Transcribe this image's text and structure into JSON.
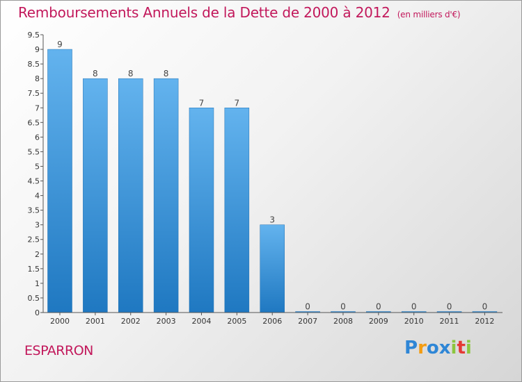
{
  "title": "Remboursements Annuels de la Dette de 2000 à 2012",
  "unit": "(en milliers d'€)",
  "place": "ESPARRON",
  "brand": {
    "letters": [
      "P",
      "r",
      "o",
      "x",
      "i",
      "t",
      "i"
    ],
    "colors": [
      "#2e86d6",
      "#f39c12",
      "#2e86d6",
      "#2e86d6",
      "#8cc63f",
      "#e53935",
      "#8cc63f"
    ]
  },
  "colors": {
    "accent": "#c2185b",
    "bar_light": "#63b3ee",
    "bar_dark": "#1f78c1"
  },
  "chart_data": {
    "type": "bar",
    "categories": [
      "2000",
      "2001",
      "2002",
      "2003",
      "2004",
      "2005",
      "2006",
      "2007",
      "2008",
      "2009",
      "2010",
      "2011",
      "2012"
    ],
    "values": [
      9,
      8,
      8,
      8,
      7,
      7,
      3,
      0,
      0,
      0,
      0,
      0,
      0
    ],
    "title": "Remboursements Annuels de la Dette de 2000 à 2012",
    "ylim": [
      0,
      9.5
    ],
    "yticks": [
      "0",
      "0.5",
      "1",
      "1.5",
      "2",
      "2.5",
      "3",
      "3.5",
      "4",
      "4.5",
      "5",
      "5.5",
      "6",
      "6.5",
      "7",
      "7.5",
      "8",
      "8.5",
      "9",
      "9.5"
    ],
    "grid": false
  }
}
